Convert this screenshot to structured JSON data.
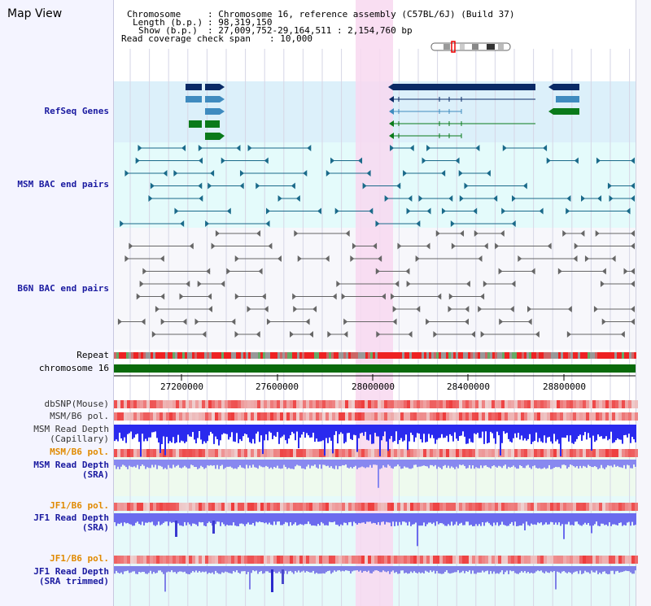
{
  "title": "Map View",
  "header": {
    "chromosome_label": "Chromosome",
    "chromosome_value": ": Chromosome 16, reference assembly (C57BL/6J) (Build 37)",
    "length_label": "Length (b.p.)",
    "length_value": ": 98,319,150",
    "show_label": "Show (b.p.)",
    "show_value": ": 27,009,752-29,164,511 : 2,154,760 bp",
    "read_span_label": "Read coverage check span",
    "read_span_value": ": 10,000"
  },
  "tracks": {
    "refseq": "RefSeq Genes",
    "msm_bac": "MSM BAC end pairs",
    "b6n_bac": "B6N BAC end pairs",
    "repeat": "Repeat",
    "chromosome": "chromosome 16",
    "dbsnp": "dbSNP(Mouse)",
    "msm_b6_pol_1": "MSM/B6 pol.",
    "msm_read_depth_cap_1": "MSM Read Depth",
    "msm_read_depth_cap_2": "(Capillary)",
    "msm_b6_pol_2": "MSM/B6 pol.",
    "msm_read_depth_sra_1": "MSM Read Depth",
    "msm_read_depth_sra_2": "(SRA)",
    "jf1_b6_pol_1": "JF1/B6 pol.",
    "jf1_read_depth_1": "JF1 Read Depth",
    "jf1_read_depth_2": "(SRA)",
    "jf1_b6_pol_2": "JF1/B6 pol.",
    "jf1_read_depth_trim_1": "JF1 Read Depth",
    "jf1_read_depth_trim_2": "(SRA trimmed)"
  },
  "axis_ticks": [
    "27200000",
    "27600000",
    "28000000",
    "28400000",
    "28800000"
  ],
  "colors": {
    "refseq_bg": "#dcf0fa",
    "msm_bac_bg": "#e4fbfb",
    "highlight": "#f8d8f0",
    "gene_dark": "#0a2a66",
    "gene_mid": "#3f8bbf",
    "gene_green": "#0a7a1a",
    "msm_bac": "#1a6a8a",
    "b6n_bac": "#666666",
    "chromosome_bar": "#0a6a0a",
    "depth_blue": "#2a2aee",
    "depth_light": "#8888f0",
    "pol_red": "#ee3333"
  }
}
